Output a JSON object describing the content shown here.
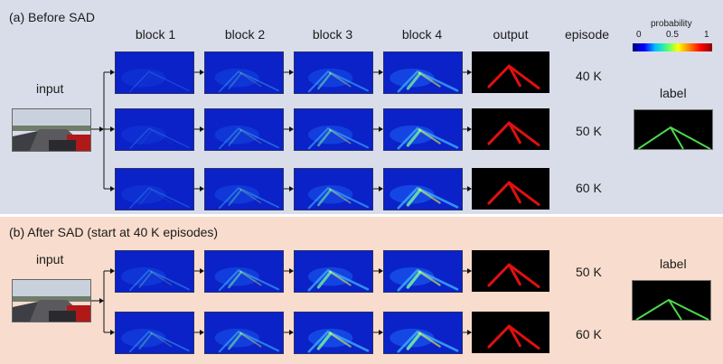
{
  "panel_a": {
    "title": "(a) Before SAD",
    "input_label": "input",
    "label_title": "label",
    "episode_header": "episode",
    "episodes": [
      "40 K",
      "50 K",
      "60 K"
    ]
  },
  "panel_b": {
    "title": "(b) After SAD (start at 40 K episodes)",
    "input_label": "input",
    "label_title": "label",
    "episodes": [
      "50 K",
      "60 K"
    ]
  },
  "columns": [
    "block 1",
    "block 2",
    "block 3",
    "block 4",
    "output"
  ],
  "colorbar": {
    "title": "probability",
    "ticks": [
      "0",
      "0.5",
      "1"
    ],
    "colors": [
      "#00007f",
      "#0000ff",
      "#00bfff",
      "#40ff80",
      "#ffff00",
      "#ff8000",
      "#ff0000",
      "#8b0000"
    ]
  },
  "colors": {
    "panel_a_bg": "#d9dde9",
    "panel_b_bg": "#f8dccd",
    "output_lane": "#e01010",
    "label_lane": "#4cd94c"
  }
}
